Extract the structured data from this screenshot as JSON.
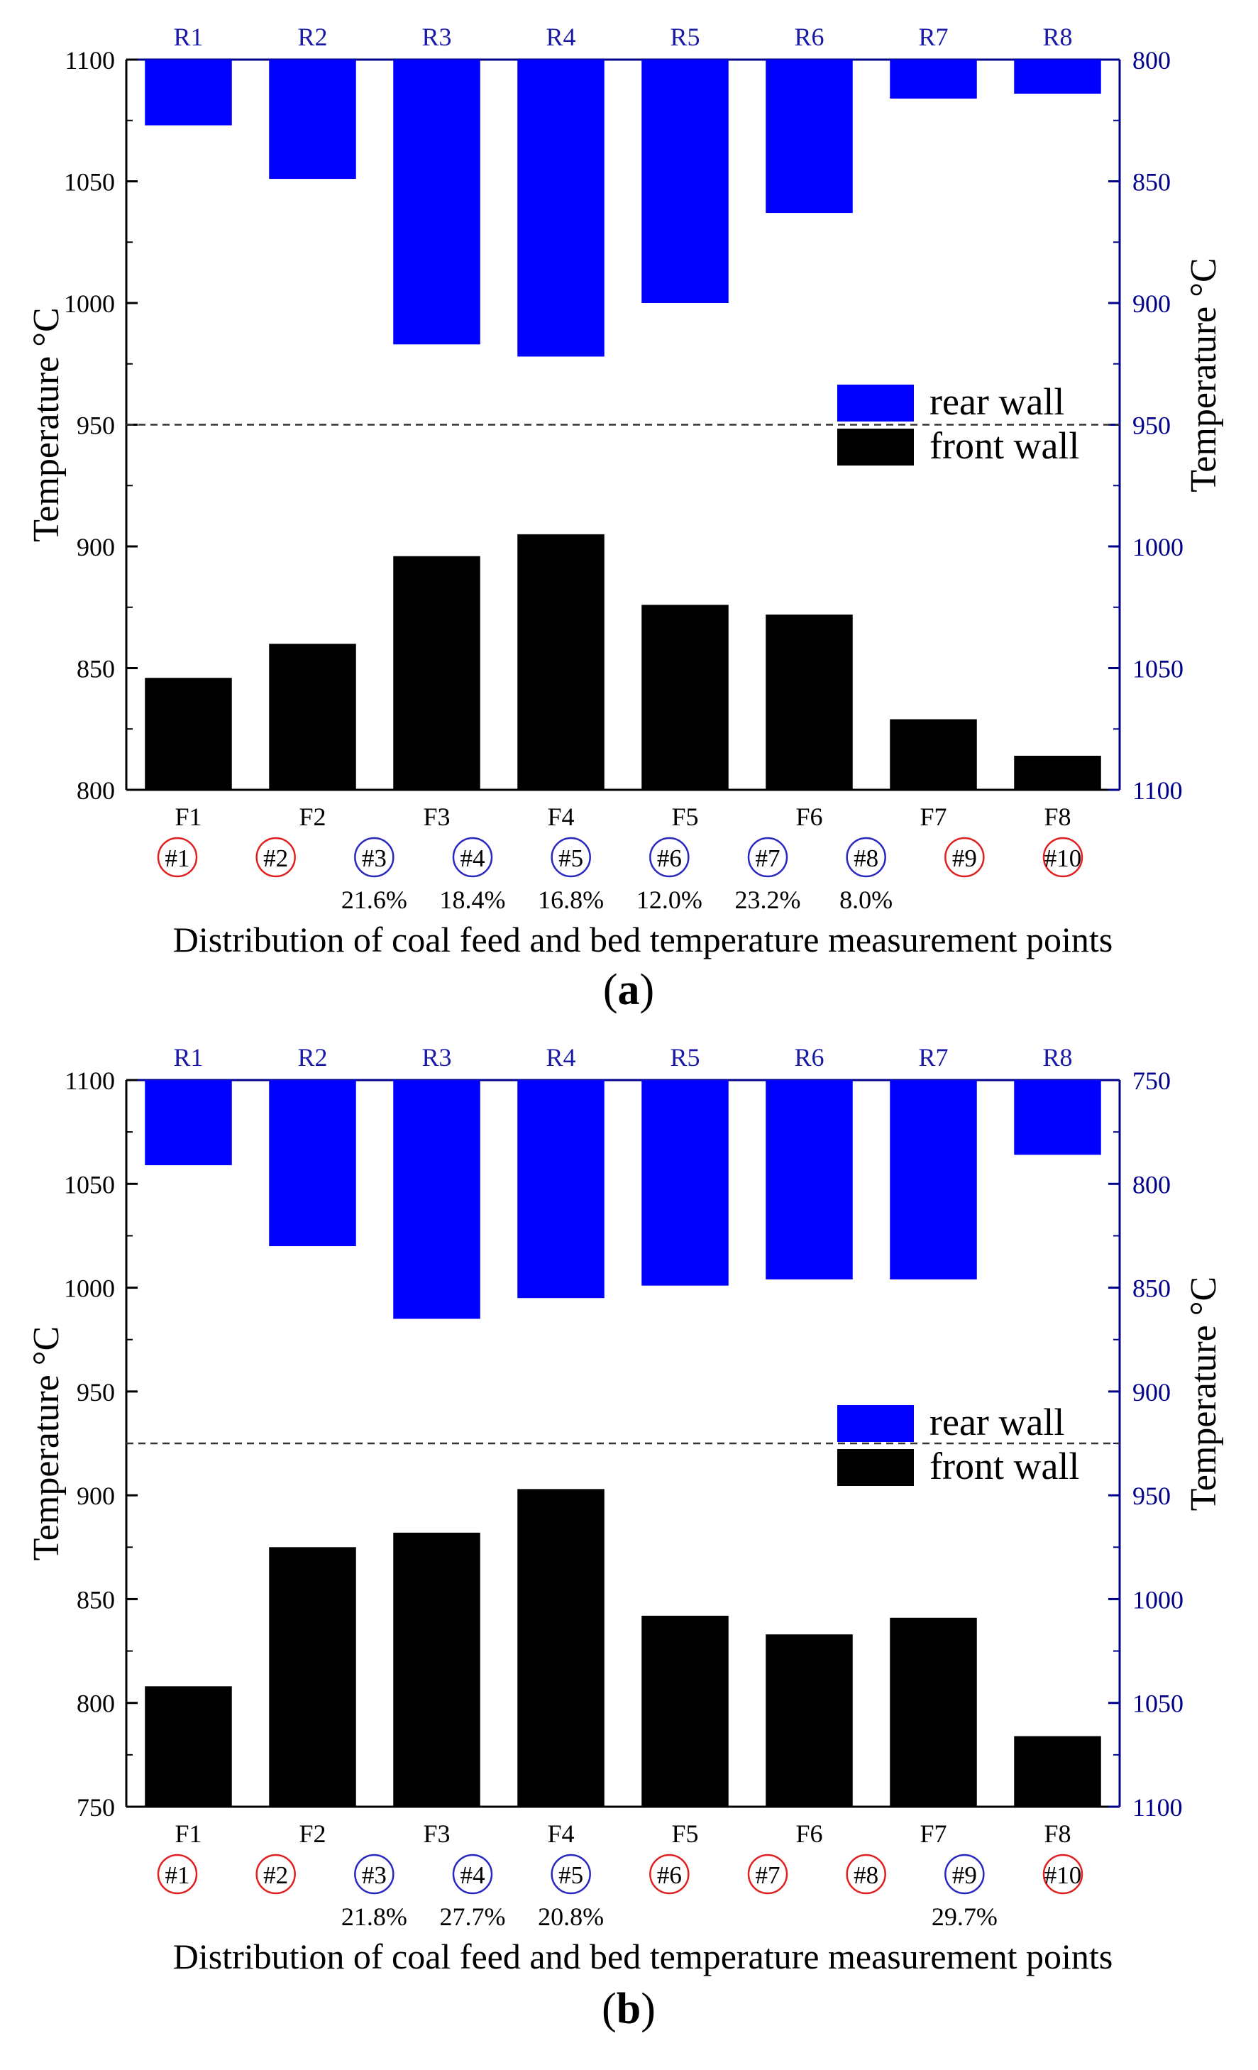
{
  "colors": {
    "front": "#000000",
    "rear": "#0000ff",
    "axis_right": "#00008b",
    "label_top": "#1a1aa6",
    "circle_red": "#e02020",
    "circle_blue": "#2828c0",
    "dashed": "#333333"
  },
  "chart_data": [
    {
      "type": "bar",
      "panel_label": "a",
      "title": "",
      "xlabel": "Distribution of coal feed and bed temperature measurement points",
      "ylabel_left": "Temperature °C",
      "ylabel_right": "Temperature °C",
      "categories_bottom": [
        "F1",
        "F2",
        "F3",
        "F4",
        "F5",
        "F6",
        "F7",
        "F8"
      ],
      "categories_top": [
        "R1",
        "R2",
        "R3",
        "R4",
        "R5",
        "R6",
        "R7",
        "R8"
      ],
      "ylim_left": [
        800,
        1100
      ],
      "yticks_left": [
        800,
        850,
        900,
        950,
        1000,
        1050,
        1100
      ],
      "ylim_right_reversed": [
        800,
        1100
      ],
      "yticks_right": [
        800,
        850,
        900,
        950,
        1000,
        1050,
        1100
      ],
      "reference_line": 950,
      "series": [
        {
          "name": "front wall",
          "axis": "left",
          "values": [
            846,
            860,
            896,
            905,
            876,
            872,
            829,
            814
          ]
        },
        {
          "name": "rear wall",
          "axis": "right_reversed",
          "values": [
            827,
            849,
            917,
            922,
            900,
            863,
            816,
            814
          ]
        }
      ],
      "legend": [
        "rear wall",
        "front wall"
      ],
      "legend_position": "right-middle",
      "feed_points": [
        {
          "label": "#1",
          "color": "red",
          "pct": ""
        },
        {
          "label": "#2",
          "color": "red",
          "pct": ""
        },
        {
          "label": "#3",
          "color": "blue",
          "pct": "21.6%"
        },
        {
          "label": "#4",
          "color": "blue",
          "pct": "18.4%"
        },
        {
          "label": "#5",
          "color": "blue",
          "pct": "16.8%"
        },
        {
          "label": "#6",
          "color": "blue",
          "pct": "12.0%"
        },
        {
          "label": "#7",
          "color": "blue",
          "pct": "23.2%"
        },
        {
          "label": "#8",
          "color": "blue",
          "pct": "8.0%"
        },
        {
          "label": "#9",
          "color": "red",
          "pct": ""
        },
        {
          "label": "#10",
          "color": "red",
          "pct": ""
        }
      ]
    },
    {
      "type": "bar",
      "panel_label": "b",
      "title": "",
      "xlabel": "Distribution of coal feed and bed temperature measurement points",
      "ylabel_left": "Temperature °C",
      "ylabel_right": "Temperature °C",
      "categories_bottom": [
        "F1",
        "F2",
        "F3",
        "F4",
        "F5",
        "F6",
        "F7",
        "F8"
      ],
      "categories_top": [
        "R1",
        "R2",
        "R3",
        "R4",
        "R5",
        "R6",
        "R7",
        "R8"
      ],
      "ylim_left": [
        750,
        1100
      ],
      "yticks_left": [
        750,
        800,
        850,
        900,
        950,
        1000,
        1050,
        1100
      ],
      "ylim_right_reversed": [
        750,
        1100
      ],
      "yticks_right": [
        750,
        800,
        850,
        900,
        950,
        1000,
        1050,
        1100
      ],
      "reference_line": 925,
      "series": [
        {
          "name": "front wall",
          "axis": "left",
          "values": [
            808,
            875,
            882,
            903,
            842,
            833,
            841,
            784
          ]
        },
        {
          "name": "rear wall",
          "axis": "right_reversed",
          "values": [
            791,
            830,
            865,
            855,
            849,
            846,
            846,
            786
          ]
        }
      ],
      "legend": [
        "rear wall",
        "front wall"
      ],
      "legend_position": "right-middle",
      "feed_points": [
        {
          "label": "#1",
          "color": "red",
          "pct": ""
        },
        {
          "label": "#2",
          "color": "red",
          "pct": ""
        },
        {
          "label": "#3",
          "color": "blue",
          "pct": "21.8%"
        },
        {
          "label": "#4",
          "color": "blue",
          "pct": "27.7%"
        },
        {
          "label": "#5",
          "color": "blue",
          "pct": "20.8%"
        },
        {
          "label": "#6",
          "color": "red",
          "pct": ""
        },
        {
          "label": "#7",
          "color": "red",
          "pct": ""
        },
        {
          "label": "#8",
          "color": "red",
          "pct": ""
        },
        {
          "label": "#9",
          "color": "blue",
          "pct": "29.7%"
        },
        {
          "label": "#10",
          "color": "red",
          "pct": ""
        }
      ]
    }
  ]
}
